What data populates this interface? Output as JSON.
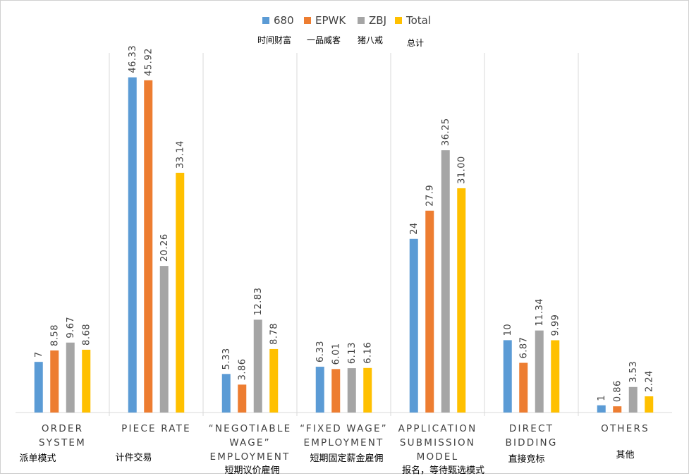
{
  "legend": {
    "items": [
      {
        "label": "680",
        "sub": "时间财富",
        "color": "#5B9BD5"
      },
      {
        "label": "EPWK",
        "sub": "一品威客",
        "color": "#ED7D31"
      },
      {
        "label": "ZBJ",
        "sub": "猪八戒",
        "color": "#A5A5A5"
      },
      {
        "label": "Total",
        "sub": "总计",
        "color": "#FFC000"
      }
    ]
  },
  "chart_data": {
    "type": "bar",
    "categories": [
      {
        "en": [
          "ORDER",
          "SYSTEM"
        ],
        "zh": "派单模式"
      },
      {
        "en": [
          "PIECE RATE"
        ],
        "zh": "计件交易"
      },
      {
        "en": [
          "“NEGOTIABLE",
          "WAGE”",
          "EMPLOYMENT"
        ],
        "zh": "短期议价雇佣"
      },
      {
        "en": [
          "“FIXED WAGE”",
          "EMPLOYMENT"
        ],
        "zh": "短期固定薪金雇佣"
      },
      {
        "en": [
          "APPLICATION",
          "SUBMISSION",
          "MODEL"
        ],
        "zh": "报名，等待甄选模式"
      },
      {
        "en": [
          "DIRECT",
          "BIDDING"
        ],
        "zh": "直接竞标"
      },
      {
        "en": [
          "OTHERS"
        ],
        "zh": "其他"
      }
    ],
    "series": [
      {
        "name": "680",
        "values": [
          7,
          46.33,
          5.33,
          6.33,
          24,
          10,
          1
        ],
        "labels": [
          "7",
          "46.33",
          "5.33",
          "6.33",
          "24",
          "10",
          "1"
        ]
      },
      {
        "name": "EPWK",
        "values": [
          8.58,
          45.92,
          3.86,
          6.01,
          27.9,
          6.87,
          0.86
        ],
        "labels": [
          "8.58",
          "45.92",
          "3.86",
          "6.01",
          "27.9",
          "6.87",
          "0.86"
        ]
      },
      {
        "name": "ZBJ",
        "values": [
          9.67,
          20.26,
          12.83,
          6.13,
          36.25,
          11.34,
          3.53
        ],
        "labels": [
          "9.67",
          "20.26",
          "12.83",
          "6.13",
          "36.25",
          "11.34",
          "3.53"
        ]
      },
      {
        "name": "Total",
        "values": [
          8.68,
          33.14,
          8.78,
          6.16,
          31.0,
          9.99,
          2.24
        ],
        "labels": [
          "8.68",
          "33.14",
          "8.78",
          "6.16",
          "31.00",
          "9.99",
          "2.24"
        ]
      }
    ],
    "ylim": [
      0,
      50
    ],
    "grid": false,
    "category_separators": true,
    "data_labels": "rotated-vertical",
    "legend_position": "top-center"
  }
}
